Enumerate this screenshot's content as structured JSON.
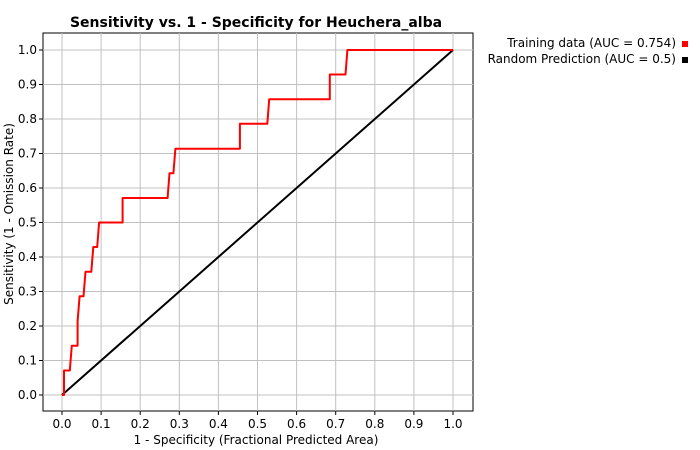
{
  "chart_data": {
    "type": "line",
    "title": "Sensitivity vs. 1 - Specificity for Heuchera_alba",
    "xlabel": "1 - Specificity  (Fractional Predicted Area)",
    "ylabel": "Sensitivity  (1 - Omission Rate)",
    "xlim": [
      0,
      1.0
    ],
    "ylim": [
      0,
      1.0
    ],
    "x_ticks": [
      "0.0",
      "0.1",
      "0.2",
      "0.3",
      "0.4",
      "0.5",
      "0.6",
      "0.7",
      "0.8",
      "0.9",
      "1.0"
    ],
    "y_ticks": [
      "0.0",
      "0.1",
      "0.2",
      "0.3",
      "0.4",
      "0.5",
      "0.6",
      "0.7",
      "0.8",
      "0.9",
      "1.0"
    ],
    "grid": true,
    "legend_position": "top-right",
    "series": [
      {
        "name": "Training data (AUC = 0.754)",
        "color": "#ff0000",
        "points": [
          [
            0.0,
            0.0
          ],
          [
            0.005,
            0.0
          ],
          [
            0.005,
            0.071
          ],
          [
            0.02,
            0.071
          ],
          [
            0.025,
            0.143
          ],
          [
            0.04,
            0.143
          ],
          [
            0.04,
            0.214
          ],
          [
            0.045,
            0.286
          ],
          [
            0.055,
            0.286
          ],
          [
            0.06,
            0.357
          ],
          [
            0.075,
            0.357
          ],
          [
            0.08,
            0.429
          ],
          [
            0.09,
            0.429
          ],
          [
            0.095,
            0.5
          ],
          [
            0.155,
            0.5
          ],
          [
            0.155,
            0.571
          ],
          [
            0.27,
            0.571
          ],
          [
            0.275,
            0.643
          ],
          [
            0.285,
            0.643
          ],
          [
            0.29,
            0.714
          ],
          [
            0.455,
            0.714
          ],
          [
            0.455,
            0.786
          ],
          [
            0.525,
            0.786
          ],
          [
            0.53,
            0.857
          ],
          [
            0.685,
            0.857
          ],
          [
            0.685,
            0.929
          ],
          [
            0.725,
            0.929
          ],
          [
            0.73,
            1.0
          ],
          [
            1.0,
            1.0
          ]
        ]
      },
      {
        "name": "Random Prediction (AUC = 0.5)",
        "color": "#000000",
        "points": [
          [
            0.0,
            0.0
          ],
          [
            1.0,
            1.0
          ]
        ]
      }
    ]
  }
}
